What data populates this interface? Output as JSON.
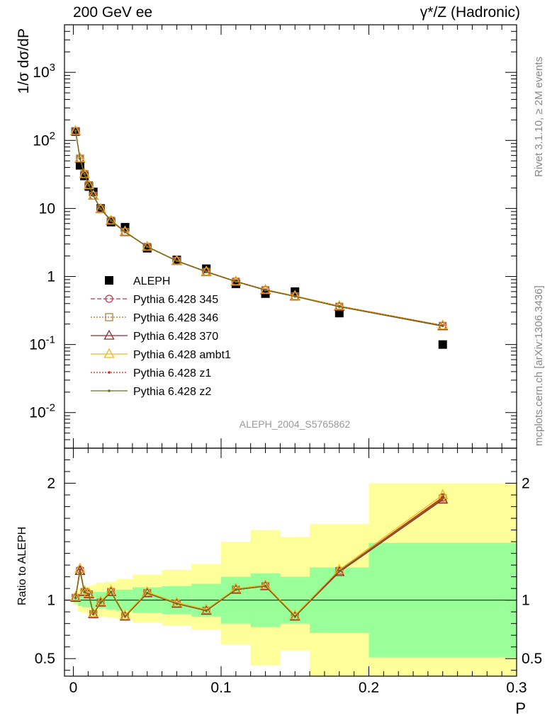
{
  "header": {
    "left": "200 GeV ee",
    "right": "γ*/Z (Hadronic)"
  },
  "side_labels": {
    "rivet": "Rivet 3.1.10, ≥ 2M events",
    "mcplots": "mcplots.cern.ch [arXiv:1306.3436]"
  },
  "analysis_id": "ALEPH_2004_S5765862",
  "chart_data": [
    {
      "type": "scatter",
      "ylabel": "1/σ  dσ/dP",
      "yscale": "log",
      "ylim": [
        0.003,
        5000
      ],
      "xlim": [
        -0.006,
        0.3
      ],
      "ytick_labels": [
        "10^-2",
        "10^-1",
        "1",
        "10",
        "10^2",
        "10^3"
      ],
      "legend_position": "middle-left",
      "x": [
        0.0015,
        0.0045,
        0.0075,
        0.0105,
        0.0135,
        0.0185,
        0.0255,
        0.035,
        0.05,
        0.07,
        0.09,
        0.11,
        0.13,
        0.15,
        0.18,
        0.25
      ],
      "series": [
        {
          "name": "ALEPH",
          "color": "#000000",
          "marker": "square",
          "values": [
            135,
            43,
            30,
            21,
            17.5,
            10,
            6.3,
            5.3,
            2.6,
            1.75,
            1.3,
            0.78,
            0.56,
            0.6,
            0.29,
            0.1
          ]
        },
        {
          "name": "Pythia 6.428 345",
          "color": "#c83250",
          "marker": "circle",
          "line": "dashed",
          "values": [
            138,
            54,
            32,
            22,
            15.5,
            9.9,
            6.7,
            4.5,
            2.75,
            1.7,
            1.18,
            0.85,
            0.64,
            0.51,
            0.365,
            0.19
          ]
        },
        {
          "name": "Pythia 6.428 346",
          "color": "#a07838",
          "marker": "square-open",
          "line": "dotted",
          "values": [
            137,
            54,
            32,
            22,
            15.4,
            9.8,
            6.6,
            4.5,
            2.73,
            1.7,
            1.17,
            0.84,
            0.63,
            0.51,
            0.36,
            0.188
          ]
        },
        {
          "name": "Pythia 6.428 370",
          "color": "#962828",
          "marker": "triangle",
          "line": "solid",
          "values": [
            137,
            54,
            32,
            22,
            15.4,
            9.8,
            6.6,
            4.5,
            2.73,
            1.69,
            1.17,
            0.84,
            0.63,
            0.51,
            0.36,
            0.186
          ]
        },
        {
          "name": "Pythia 6.428 ambt1",
          "color": "#f0b41e",
          "marker": "triangle",
          "line": "solid",
          "values": [
            138,
            55,
            32,
            22,
            15.5,
            9.9,
            6.7,
            4.6,
            2.76,
            1.71,
            1.19,
            0.85,
            0.64,
            0.52,
            0.37,
            0.192
          ]
        },
        {
          "name": "Pythia 6.428 z1",
          "color": "#e02020",
          "marker": "dot",
          "line": "dotted",
          "values": [
            138,
            54,
            32,
            22,
            15.5,
            9.9,
            6.7,
            4.5,
            2.75,
            1.7,
            1.18,
            0.85,
            0.64,
            0.51,
            0.365,
            0.19
          ]
        },
        {
          "name": "Pythia 6.428 z2",
          "color": "#6e6e1e",
          "marker": "dot",
          "line": "solid",
          "values": [
            137,
            54,
            32,
            22,
            15.4,
            9.8,
            6.6,
            4.5,
            2.73,
            1.7,
            1.17,
            0.84,
            0.63,
            0.51,
            0.36,
            0.188
          ]
        }
      ]
    },
    {
      "type": "line",
      "ylabel": "Ratio to ALEPH",
      "xlabel": "P",
      "ylim": [
        0.35,
        2.3
      ],
      "xlim": [
        -0.006,
        0.3
      ],
      "xtick_labels": [
        "0",
        "0.1",
        "0.2",
        "0.3"
      ],
      "ytick_labels": [
        "0.5",
        "1",
        "2"
      ],
      "bands": {
        "bins": [
          [
            0,
            0.003
          ],
          [
            0.003,
            0.006
          ],
          [
            0.006,
            0.009
          ],
          [
            0.009,
            0.012
          ],
          [
            0.012,
            0.015
          ],
          [
            0.015,
            0.022
          ],
          [
            0.022,
            0.029
          ],
          [
            0.029,
            0.04
          ],
          [
            0.04,
            0.06
          ],
          [
            0.06,
            0.08
          ],
          [
            0.08,
            0.1
          ],
          [
            0.1,
            0.12
          ],
          [
            0.12,
            0.14
          ],
          [
            0.14,
            0.16
          ],
          [
            0.16,
            0.2
          ],
          [
            0.2,
            0.3
          ]
        ],
        "inner": [
          [
            0.98,
            1.02
          ],
          [
            0.95,
            1.05
          ],
          [
            0.94,
            1.06
          ],
          [
            0.94,
            1.07
          ],
          [
            0.93,
            1.07
          ],
          [
            0.93,
            1.07
          ],
          [
            0.92,
            1.08
          ],
          [
            0.91,
            1.09
          ],
          [
            0.89,
            1.11
          ],
          [
            0.88,
            1.12
          ],
          [
            0.86,
            1.14
          ],
          [
            0.8,
            1.2
          ],
          [
            0.77,
            1.23
          ],
          [
            0.8,
            1.2
          ],
          [
            0.72,
            1.28
          ],
          [
            0.51,
            1.49
          ]
        ],
        "outer": [
          [
            0.96,
            1.04
          ],
          [
            0.9,
            1.1
          ],
          [
            0.89,
            1.11
          ],
          [
            0.88,
            1.12
          ],
          [
            0.87,
            1.13
          ],
          [
            0.86,
            1.15
          ],
          [
            0.85,
            1.16
          ],
          [
            0.84,
            1.18
          ],
          [
            0.81,
            1.22
          ],
          [
            0.78,
            1.26
          ],
          [
            0.75,
            1.31
          ],
          [
            0.62,
            1.5
          ],
          [
            0.44,
            1.6
          ],
          [
            0.57,
            1.54
          ],
          [
            0.35,
            1.65
          ],
          [
            0.35,
            2.0
          ]
        ]
      },
      "x": [
        0.0015,
        0.0045,
        0.0075,
        0.0105,
        0.0135,
        0.0185,
        0.0255,
        0.035,
        0.05,
        0.07,
        0.09,
        0.11,
        0.13,
        0.15,
        0.18,
        0.25
      ],
      "series": [
        {
          "name": "Pythia 6.428 345",
          "color": "#c83250",
          "marker": "circle",
          "values": [
            1.02,
            1.26,
            1.07,
            1.05,
            0.88,
            0.98,
            1.07,
            0.86,
            1.06,
            0.97,
            0.91,
            1.09,
            1.12,
            0.86,
            1.25,
            1.88
          ]
        },
        {
          "name": "Pythia 6.428 346",
          "color": "#a07838",
          "marker": "square-open",
          "values": [
            1.02,
            1.25,
            1.07,
            1.05,
            0.88,
            0.98,
            1.07,
            0.86,
            1.06,
            0.97,
            0.91,
            1.09,
            1.12,
            0.86,
            1.25,
            1.87
          ]
        },
        {
          "name": "Pythia 6.428 370",
          "color": "#962828",
          "marker": "triangle",
          "values": [
            1.02,
            1.25,
            1.07,
            1.05,
            0.88,
            0.98,
            1.07,
            0.86,
            1.06,
            0.97,
            0.91,
            1.09,
            1.12,
            0.86,
            1.24,
            1.86
          ]
        },
        {
          "name": "Pythia 6.428 ambt1",
          "color": "#f0b41e",
          "marker": "triangle",
          "values": [
            1.03,
            1.27,
            1.08,
            1.06,
            0.89,
            0.99,
            1.08,
            0.87,
            1.07,
            0.98,
            0.92,
            1.1,
            1.13,
            0.87,
            1.26,
            1.9
          ]
        },
        {
          "name": "Pythia 6.428 z1",
          "color": "#e02020",
          "marker": "dot",
          "values": [
            1.02,
            1.26,
            1.07,
            1.05,
            0.88,
            0.98,
            1.07,
            0.86,
            1.06,
            0.97,
            0.91,
            1.09,
            1.12,
            0.86,
            1.25,
            1.88
          ]
        },
        {
          "name": "Pythia 6.428 z2",
          "color": "#6e6e1e",
          "marker": "dot",
          "values": [
            1.02,
            1.25,
            1.07,
            1.05,
            0.88,
            0.98,
            1.07,
            0.86,
            1.06,
            0.97,
            0.91,
            1.09,
            1.12,
            0.86,
            1.25,
            1.87
          ]
        }
      ]
    }
  ]
}
